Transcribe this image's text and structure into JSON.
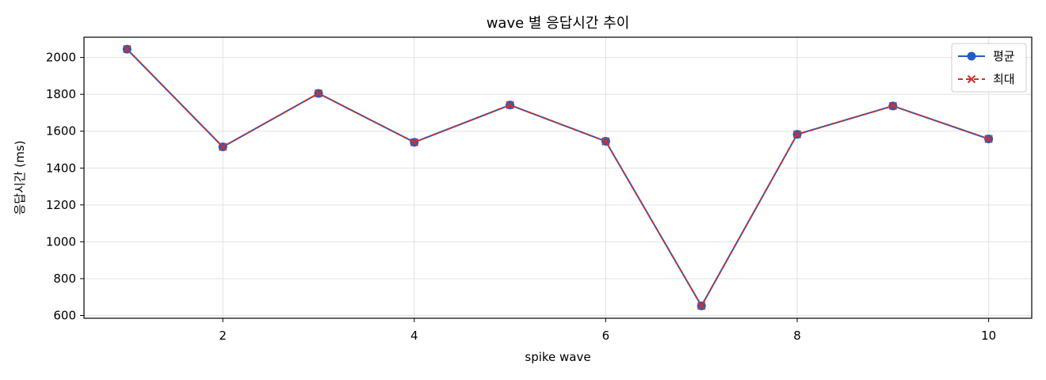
{
  "chart_data": {
    "type": "line",
    "title": "wave 별 응답시간 추이",
    "xlabel": "spike wave",
    "ylabel": "응답시간 (ms)",
    "x": [
      1,
      2,
      3,
      4,
      5,
      6,
      7,
      8,
      9,
      10
    ],
    "xlim": [
      0.55,
      10.45
    ],
    "ylim": [
      585,
      2110
    ],
    "x_ticks": [
      2,
      4,
      6,
      8,
      10
    ],
    "y_ticks": [
      600,
      800,
      1000,
      1200,
      1400,
      1600,
      1800,
      2000
    ],
    "grid": true,
    "legend_position": "top-right",
    "series": [
      {
        "name": "평균",
        "color": "#1f5fbf",
        "marker": "circle",
        "line_style": "solid",
        "values": [
          2045,
          1515,
          1805,
          1540,
          1742,
          1545,
          652,
          1583,
          1737,
          1558
        ]
      },
      {
        "name": "최대",
        "color": "#d03030",
        "marker": "x",
        "line_style": "dashed",
        "values": [
          2045,
          1515,
          1805,
          1540,
          1742,
          1545,
          652,
          1583,
          1737,
          1558
        ]
      }
    ]
  }
}
